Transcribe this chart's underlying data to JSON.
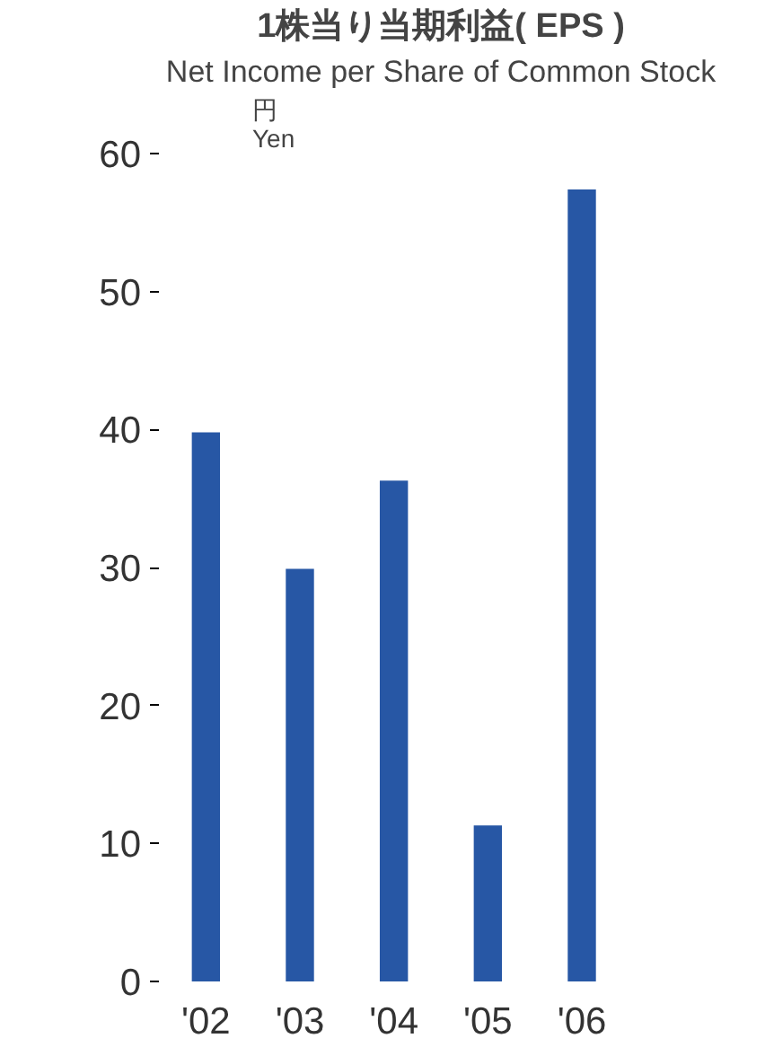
{
  "chart_data": {
    "type": "bar",
    "title": "1株当り当期利益( EPS )",
    "subtitle": "Net Income per Share of Common Stock",
    "ylabel": "円\nYen",
    "categories": [
      "'02",
      "'03",
      "'04",
      "'05",
      "'06"
    ],
    "values": [
      39.8,
      29.9,
      36.3,
      11.3,
      57.4
    ],
    "color": "#2757a5",
    "ylim": [
      0,
      60
    ],
    "yticks": [
      0,
      10,
      20,
      30,
      40,
      50,
      60
    ]
  }
}
